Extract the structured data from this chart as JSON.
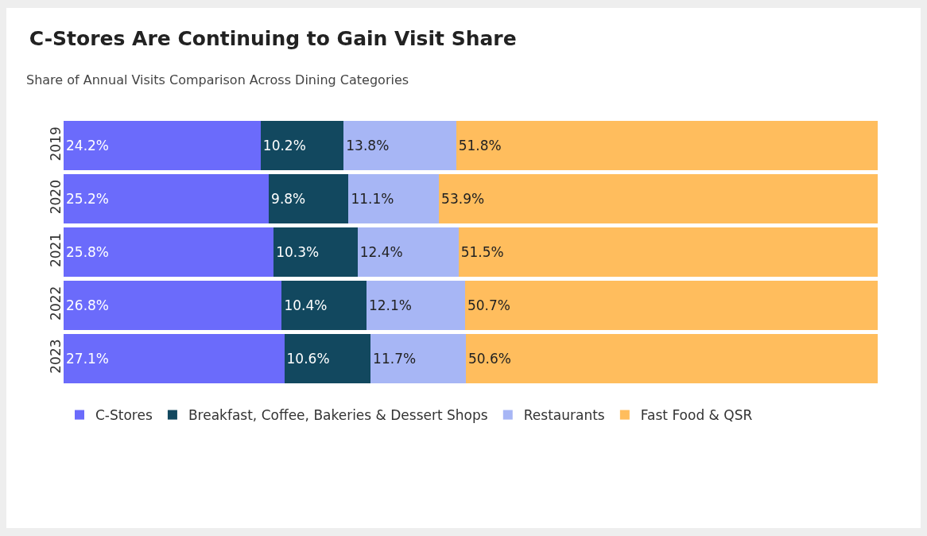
{
  "chart_data": {
    "type": "bar",
    "orientation": "horizontal",
    "stacked": true,
    "title": "C-Stores Are Continuing to Gain Visit Share",
    "subtitle": "Share of Annual Visits Comparison Across Dining Categories",
    "categories": [
      "2019",
      "2020",
      "2021",
      "2022",
      "2023"
    ],
    "series": [
      {
        "name": "C-Stores",
        "color": "#6b6bfb",
        "values": [
          24.2,
          25.2,
          25.8,
          26.8,
          27.1
        ],
        "value_labels": [
          "24.2%",
          "25.2%",
          "25.8%",
          "26.8%",
          "27.1%"
        ]
      },
      {
        "name": "Breakfast, Coffee, Bakeries & Dessert Shops",
        "color": "#12485f",
        "values": [
          10.2,
          9.8,
          10.3,
          10.4,
          10.6
        ],
        "value_labels": [
          "10.2%",
          "9.8%",
          "10.3%",
          "10.4%",
          "10.6%"
        ]
      },
      {
        "name": "Restaurants",
        "color": "#a7b6f5",
        "values": [
          13.8,
          11.1,
          12.4,
          12.1,
          11.7
        ],
        "value_labels": [
          "13.8%",
          "11.1%",
          "12.4%",
          "12.1%",
          "11.7%"
        ]
      },
      {
        "name": "Fast Food & QSR",
        "color": "#ffbd5d",
        "values": [
          51.8,
          53.9,
          51.5,
          50.7,
          50.6
        ],
        "value_labels": [
          "51.8%",
          "53.9%",
          "51.5%",
          "50.7%",
          "50.6%"
        ]
      }
    ],
    "tick_labels": "y",
    "grid": false,
    "legend": "bottom left"
  }
}
